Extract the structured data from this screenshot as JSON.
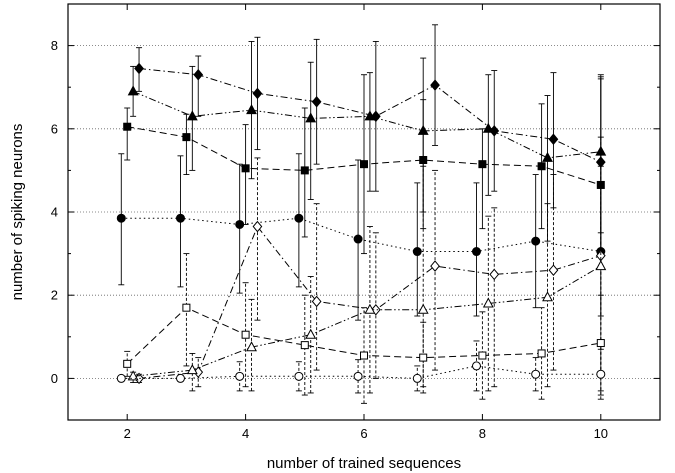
{
  "chart_data": {
    "type": "line",
    "xlabel": "number of trained sequences",
    "ylabel": "number of spiking neurons",
    "xlim": [
      1,
      11
    ],
    "ylim": [
      -1,
      9
    ],
    "xticks": [
      2,
      4,
      6,
      8,
      10
    ],
    "yticks": [
      0,
      2,
      4,
      6,
      8
    ],
    "x_tick_labels": [
      "2",
      "4",
      "6",
      "8",
      "10"
    ],
    "y_tick_labels": [
      "0",
      "2",
      "4",
      "6",
      "8"
    ],
    "grid": "horizontal dotted at y ticks",
    "series": [
      {
        "marker": "filled-diamond",
        "line": "dash-dot",
        "points": [
          {
            "x": 2.2,
            "y": 7.45,
            "lo": 6.9,
            "hi": 7.95
          },
          {
            "x": 3.2,
            "y": 7.3,
            "lo": 6.3,
            "hi": 7.75
          },
          {
            "x": 4.2,
            "y": 6.85,
            "lo": 5.5,
            "hi": 8.2
          },
          {
            "x": 5.2,
            "y": 6.65,
            "lo": 5.15,
            "hi": 8.15
          },
          {
            "x": 6.2,
            "y": 6.3,
            "lo": 4.5,
            "hi": 8.1
          },
          {
            "x": 7.2,
            "y": 7.05,
            "lo": 5.6,
            "hi": 8.5
          },
          {
            "x": 8.2,
            "y": 5.95,
            "lo": 4.5,
            "hi": 7.4
          },
          {
            "x": 9.2,
            "y": 5.75,
            "lo": 4.1,
            "hi": 7.35
          },
          {
            "x": 10.0,
            "y": 5.2,
            "lo": 3.1,
            "hi": 7.3
          }
        ]
      },
      {
        "marker": "filled-triangle",
        "line": "dash-dot-dot",
        "points": [
          {
            "x": 2.1,
            "y": 6.9,
            "lo": 6.3,
            "hi": 7.5
          },
          {
            "x": 3.1,
            "y": 6.3,
            "lo": 5.0,
            "hi": 7.5
          },
          {
            "x": 4.1,
            "y": 6.45,
            "lo": 4.8,
            "hi": 8.1
          },
          {
            "x": 5.1,
            "y": 6.25,
            "lo": 4.3,
            "hi": 7.6
          },
          {
            "x": 6.1,
            "y": 6.3,
            "lo": 4.5,
            "hi": 7.35
          },
          {
            "x": 7.0,
            "y": 5.95,
            "lo": 4.0,
            "hi": 7.7
          },
          {
            "x": 8.1,
            "y": 6.0,
            "lo": 4.4,
            "hi": 7.3
          },
          {
            "x": 9.1,
            "y": 5.3,
            "lo": 3.3,
            "hi": 6.8
          },
          {
            "x": 10.0,
            "y": 5.45,
            "lo": 3.5,
            "hi": 7.2
          }
        ]
      },
      {
        "marker": "filled-square",
        "line": "dashed",
        "points": [
          {
            "x": 2.0,
            "y": 6.05,
            "lo": 5.25,
            "hi": 6.5
          },
          {
            "x": 3.0,
            "y": 5.8,
            "lo": 4.9,
            "hi": 6.35
          },
          {
            "x": 4.0,
            "y": 5.05,
            "lo": 3.7,
            "hi": 6.1
          },
          {
            "x": 5.0,
            "y": 5.0,
            "lo": 3.4,
            "hi": 6.5
          },
          {
            "x": 6.0,
            "y": 5.15,
            "lo": 3.0,
            "hi": 7.3
          },
          {
            "x": 7.0,
            "y": 5.25,
            "lo": 3.6,
            "hi": 6.7
          },
          {
            "x": 8.0,
            "y": 5.15,
            "lo": 3.6,
            "hi": 6.0
          },
          {
            "x": 9.0,
            "y": 5.1,
            "lo": 3.6,
            "hi": 6.6
          },
          {
            "x": 10.0,
            "y": 4.65,
            "lo": 3.0,
            "hi": 7.25
          }
        ]
      },
      {
        "marker": "filled-circle",
        "line": "dotted",
        "points": [
          {
            "x": 1.9,
            "y": 3.85,
            "lo": 2.25,
            "hi": 5.4
          },
          {
            "x": 2.9,
            "y": 3.85,
            "lo": 2.2,
            "hi": 5.35
          },
          {
            "x": 3.9,
            "y": 3.7,
            "lo": 2.05,
            "hi": 5.15
          },
          {
            "x": 4.9,
            "y": 3.85,
            "lo": 2.2,
            "hi": 5.4
          },
          {
            "x": 5.9,
            "y": 3.35,
            "lo": 1.4,
            "hi": 5.25
          },
          {
            "x": 6.9,
            "y": 3.05,
            "lo": 1.5,
            "hi": 4.7
          },
          {
            "x": 7.9,
            "y": 3.05,
            "lo": 1.5,
            "hi": 4.7
          },
          {
            "x": 8.9,
            "y": 3.3,
            "lo": 1.7,
            "hi": 4.9
          },
          {
            "x": 10.0,
            "y": 3.05,
            "lo": 1.5,
            "hi": 4.6
          }
        ]
      },
      {
        "marker": "open-diamond",
        "line": "dash-dot",
        "points": [
          {
            "x": 2.2,
            "y": 0.0,
            "lo": -0.1,
            "hi": 0.1
          },
          {
            "x": 3.2,
            "y": 0.15,
            "lo": -0.2,
            "hi": 0.5
          },
          {
            "x": 4.2,
            "y": 3.65,
            "lo": 1.4,
            "hi": 5.3
          },
          {
            "x": 5.2,
            "y": 1.85,
            "lo": 0.2,
            "hi": 4.2
          },
          {
            "x": 6.2,
            "y": 1.65,
            "lo": 0.0,
            "hi": 3.5
          },
          {
            "x": 7.2,
            "y": 2.7,
            "lo": 0.2,
            "hi": 5.0
          },
          {
            "x": 8.2,
            "y": 2.5,
            "lo": -0.2,
            "hi": 4.1
          },
          {
            "x": 9.2,
            "y": 2.6,
            "lo": 0.2,
            "hi": 4.9
          },
          {
            "x": 10.0,
            "y": 2.95,
            "lo": 0.1,
            "hi": 5.1
          }
        ]
      },
      {
        "marker": "open-triangle",
        "line": "dash-dot-dot",
        "points": [
          {
            "x": 2.1,
            "y": 0.05,
            "lo": -0.1,
            "hi": 0.15
          },
          {
            "x": 3.1,
            "y": 0.2,
            "lo": -0.3,
            "hi": 0.6
          },
          {
            "x": 4.1,
            "y": 0.75,
            "lo": -0.3,
            "hi": 1.9
          },
          {
            "x": 5.1,
            "y": 1.05,
            "lo": -0.35,
            "hi": 2.45
          },
          {
            "x": 6.1,
            "y": 1.65,
            "lo": -0.35,
            "hi": 3.65
          },
          {
            "x": 7.0,
            "y": 1.65,
            "lo": -0.2,
            "hi": 5.1
          },
          {
            "x": 8.1,
            "y": 1.8,
            "lo": -0.3,
            "hi": 3.9
          },
          {
            "x": 9.1,
            "y": 1.95,
            "lo": -0.2,
            "hi": 4.2
          },
          {
            "x": 10.0,
            "y": 2.7,
            "lo": -0.4,
            "hi": 5.8
          }
        ]
      },
      {
        "marker": "open-square",
        "line": "dashed",
        "points": [
          {
            "x": 2.0,
            "y": 0.35,
            "lo": 0.05,
            "hi": 0.65
          },
          {
            "x": 3.0,
            "y": 1.7,
            "lo": 0.3,
            "hi": 3.0
          },
          {
            "x": 4.0,
            "y": 1.05,
            "lo": -0.2,
            "hi": 2.3
          },
          {
            "x": 5.0,
            "y": 0.8,
            "lo": -0.4,
            "hi": 2.0
          },
          {
            "x": 6.0,
            "y": 0.55,
            "lo": -0.6,
            "hi": 1.7
          },
          {
            "x": 7.0,
            "y": 0.5,
            "lo": -0.35,
            "hi": 1.35
          },
          {
            "x": 8.0,
            "y": 0.55,
            "lo": -0.5,
            "hi": 1.6
          },
          {
            "x": 9.0,
            "y": 0.6,
            "lo": -0.5,
            "hi": 1.7
          },
          {
            "x": 10.0,
            "y": 0.85,
            "lo": -0.3,
            "hi": 2.0
          }
        ]
      },
      {
        "marker": "open-circle",
        "line": "dotted",
        "points": [
          {
            "x": 1.9,
            "y": 0.0,
            "lo": -0.05,
            "hi": 0.05
          },
          {
            "x": 2.9,
            "y": 0.0,
            "lo": -0.05,
            "hi": 0.05
          },
          {
            "x": 3.9,
            "y": 0.05,
            "lo": -0.3,
            "hi": 0.4
          },
          {
            "x": 4.9,
            "y": 0.05,
            "lo": -0.3,
            "hi": 0.4
          },
          {
            "x": 5.9,
            "y": 0.05,
            "lo": -0.35,
            "hi": 0.45
          },
          {
            "x": 6.9,
            "y": 0.0,
            "lo": -0.3,
            "hi": 0.3
          },
          {
            "x": 7.9,
            "y": 0.3,
            "lo": -0.3,
            "hi": 0.9
          },
          {
            "x": 8.9,
            "y": 0.1,
            "lo": -0.3,
            "hi": 0.5
          },
          {
            "x": 10.0,
            "y": 0.1,
            "lo": -0.5,
            "hi": 0.7
          }
        ]
      }
    ]
  }
}
